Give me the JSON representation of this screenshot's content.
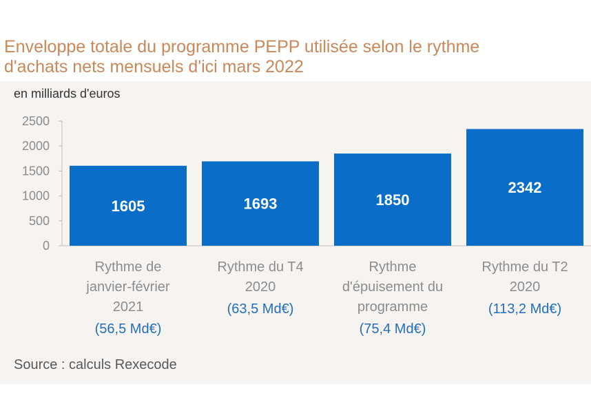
{
  "title_line1": "Enveloppe totale du programme PEPP utilisée selon le rythme",
  "title_line2": "d'achats nets mensuels d'ici mars 2022",
  "unit_label": "en milliards d'euros",
  "source": "Source : calculs Rexecode",
  "colors": {
    "bar": "#0a6ec9",
    "title": "#c9885a",
    "subtitle": "#1f6fc0",
    "panel": "#f7f3f0"
  },
  "chart_data": {
    "type": "bar",
    "title": "Enveloppe totale du programme PEPP utilisée selon le rythme d'achats nets mensuels d'ici mars 2022",
    "ylabel": "en milliards d'euros",
    "xlabel": "",
    "ylim": [
      0,
      2500
    ],
    "yticks": [
      0,
      500,
      1000,
      1500,
      2000,
      2500
    ],
    "grid": false,
    "categories": [
      [
        "Rythme de",
        "janvier-février",
        "2021"
      ],
      [
        "Rythme du T4",
        "2020"
      ],
      [
        "Rythme",
        "d'épuisement du",
        "programme"
      ],
      [
        "Rythme du T2",
        "2020"
      ]
    ],
    "subtitles": [
      "(56,5 Md€)",
      "(63,5 Md€)",
      "(75,4 Md€)",
      "(113,2 Md€)"
    ],
    "values": [
      1605,
      1693,
      1850,
      2342
    ],
    "value_labels": [
      "1605",
      "1693",
      "1850",
      "2342"
    ]
  }
}
